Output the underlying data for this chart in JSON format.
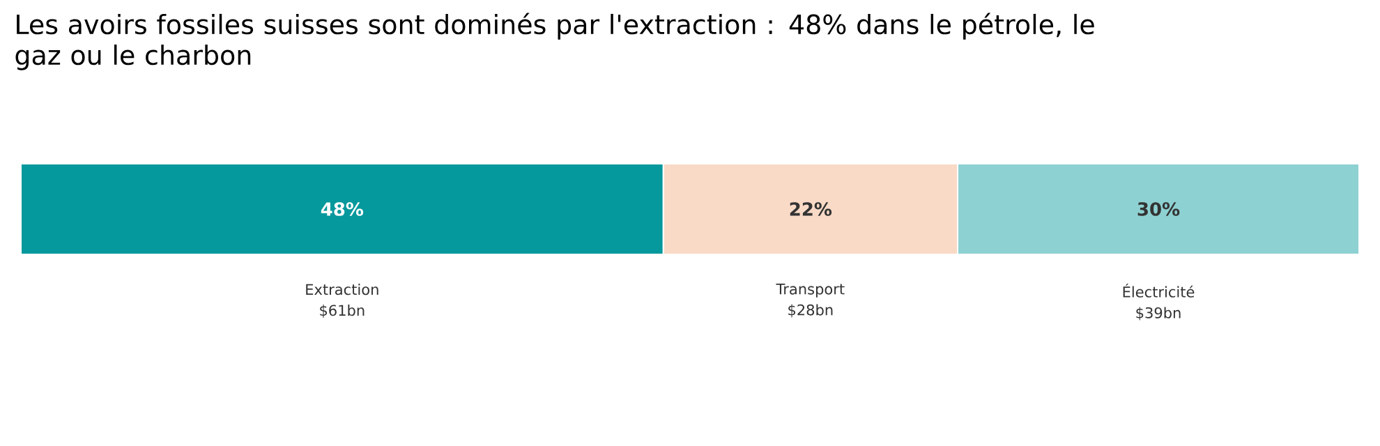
{
  "chart_data": {
    "type": "bar",
    "orientation": "horizontal",
    "stacked": true,
    "title": "Les avoirs fossiles suisses sont dominés par l'extraction : 48% dans le pétrole, le gaz ou le charbon",
    "categories": [
      null
    ],
    "xlim": [
      0,
      100
    ],
    "tick_labels": false,
    "series": [
      {
        "name": "Extraction",
        "color": "#05989c",
        "values": [
          48
        ],
        "value_labels": [
          "48%"
        ]
      },
      {
        "name": "Transport",
        "color": "#f9dac6",
        "values": [
          22
        ],
        "value_labels": [
          "22%"
        ]
      },
      {
        "name": "Électricité",
        "color": "#8ed1d2",
        "values": [
          30
        ],
        "value_labels": [
          "30%"
        ]
      }
    ],
    "annotations": [
      "$61bn",
      "$28bn",
      "$39bn"
    ]
  }
}
